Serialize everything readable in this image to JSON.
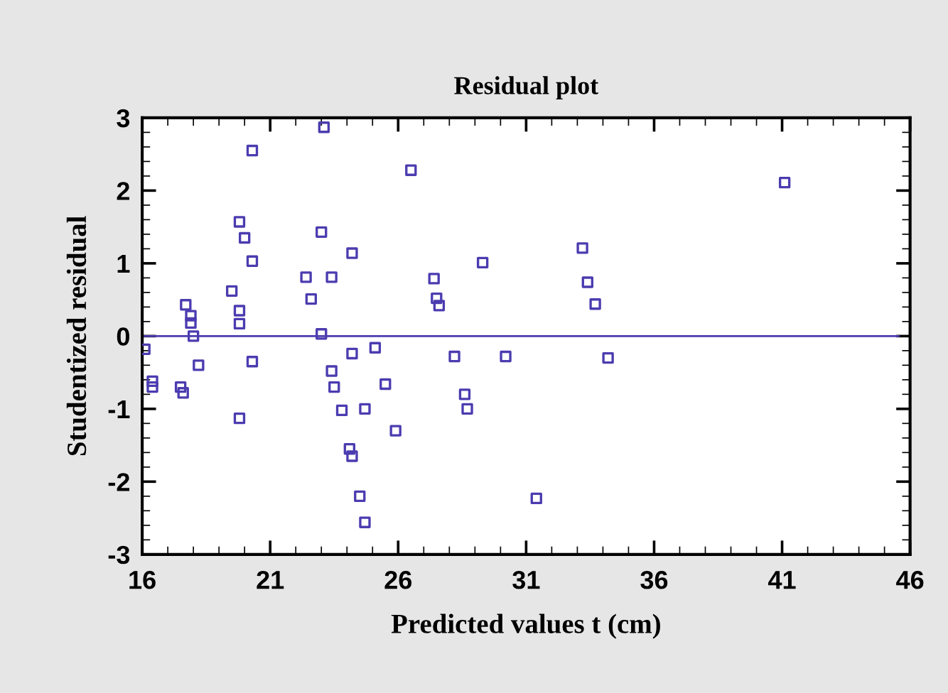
{
  "chart_data": {
    "type": "scatter",
    "title": "Residual plot",
    "xlabel": "Predicted values t (cm)",
    "ylabel": "Studentized residual",
    "marker": "square",
    "grid": false,
    "legend": false,
    "xlim": [
      16,
      46
    ],
    "xticks": [
      16,
      21,
      26,
      31,
      36,
      41,
      46
    ],
    "ylim": [
      -3,
      3
    ],
    "yticks": [
      -3,
      -2,
      -1,
      0,
      1,
      2,
      3
    ],
    "ref_lines": [
      {
        "axis": "y",
        "value": 0,
        "color": "#4b3cb0"
      }
    ],
    "series": [
      {
        "color": "#4b3cb0",
        "x": [
          16.1,
          16.4,
          16.4,
          17.5,
          17.6,
          17.7,
          17.9,
          17.9,
          18.0,
          18.2,
          19.5,
          19.8,
          19.8,
          19.8,
          19.8,
          20.0,
          20.3,
          20.3,
          20.3,
          22.4,
          22.6,
          23.0,
          23.0,
          23.1,
          23.4,
          23.5,
          23.4,
          23.8,
          24.2,
          24.2,
          24.1,
          24.2,
          24.5,
          24.7,
          24.7,
          25.1,
          25.5,
          25.9,
          26.5,
          27.4,
          27.5,
          27.6,
          28.2,
          28.6,
          28.7,
          29.3,
          30.2,
          31.4,
          33.2,
          33.4,
          33.7,
          34.2,
          41.1
        ],
        "values": [
          -0.18,
          -0.62,
          -0.7,
          -0.7,
          -0.78,
          0.43,
          0.28,
          0.18,
          0.0,
          -0.4,
          0.62,
          1.57,
          0.35,
          0.17,
          -1.13,
          1.35,
          2.55,
          1.03,
          -0.35,
          0.81,
          0.51,
          1.43,
          0.03,
          2.87,
          -0.48,
          -0.7,
          0.81,
          -1.02,
          1.14,
          -0.24,
          -1.55,
          -1.65,
          -2.2,
          -2.56,
          -1.0,
          -0.16,
          -0.66,
          -1.3,
          2.28,
          0.79,
          0.52,
          0.42,
          -0.28,
          -0.8,
          -1.0,
          1.01,
          -0.28,
          -2.23,
          1.21,
          0.74,
          0.44,
          -0.3,
          2.11
        ]
      }
    ]
  }
}
